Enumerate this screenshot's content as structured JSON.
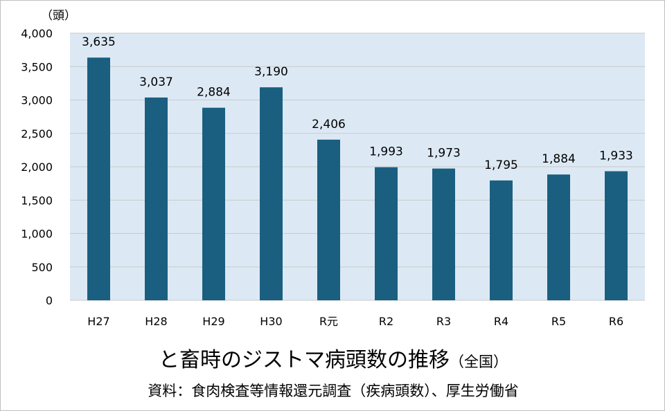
{
  "chart_data": {
    "type": "bar",
    "unit_label": "（頭）",
    "categories": [
      "H27",
      "H28",
      "H29",
      "H30",
      "R元",
      "R2",
      "R3",
      "R4",
      "R5",
      "R6"
    ],
    "values": [
      3635,
      3037,
      2884,
      3190,
      2406,
      1993,
      1973,
      1795,
      1884,
      1933
    ],
    "value_labels": [
      "3,635",
      "3,037",
      "2,884",
      "3,190",
      "2,406",
      "1,993",
      "1,973",
      "1,795",
      "1,884",
      "1,933"
    ],
    "ylim": [
      0,
      4000
    ],
    "y_ticks": [
      0,
      500,
      1000,
      1500,
      2000,
      2500,
      3000,
      3500,
      4000
    ],
    "y_tick_labels": [
      "0",
      "500",
      "1,000",
      "1,500",
      "2,000",
      "2,500",
      "3,000",
      "3,500",
      "4,000"
    ],
    "grid": true,
    "title": "と畜時のジストマ病頭数の推移",
    "title_suffix": "（全国）",
    "source": "資料：食肉検査等情報還元調査（疾病頭数）、厚生労働省",
    "colors": {
      "bar": "#1a5f80",
      "plot_bg": "#dce9f5",
      "grid": "#c9c9c9"
    }
  }
}
